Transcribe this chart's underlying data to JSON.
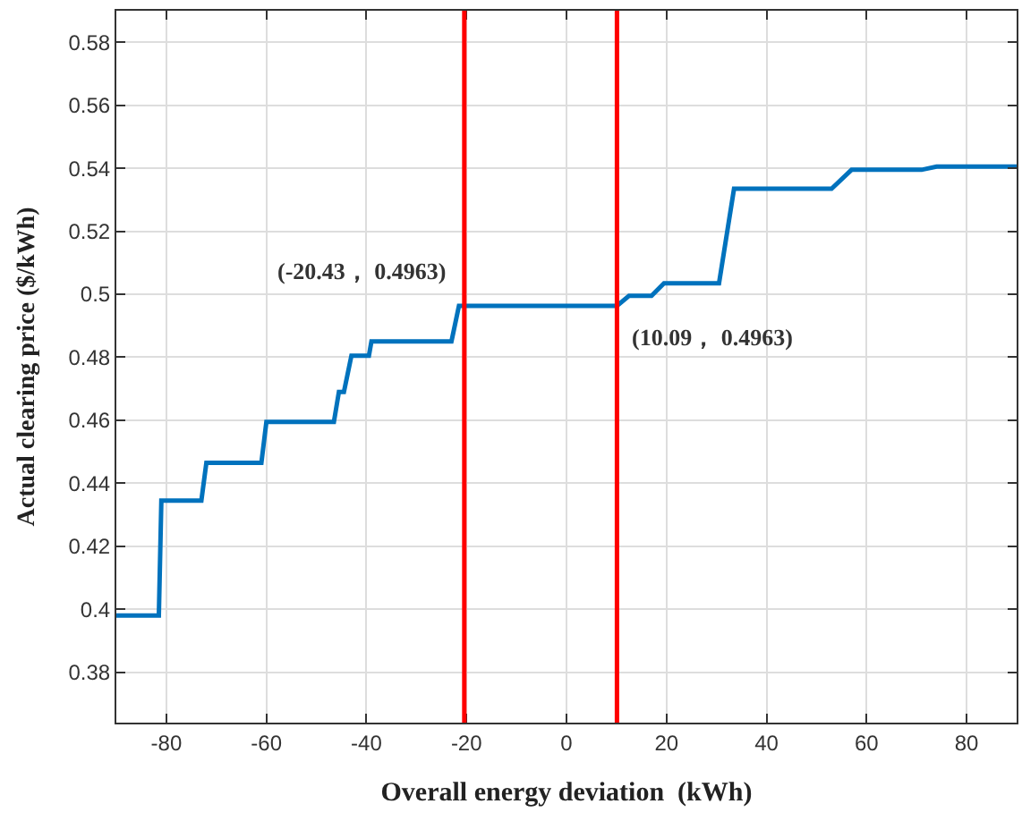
{
  "chart_data": {
    "type": "line",
    "xlabel": "Overall energy deviation  (kWh)",
    "ylabel": "Actual clearing price ($/kWh)",
    "x": [
      -90,
      -81.5,
      -81,
      -73,
      -72,
      -61,
      -60,
      -46.5,
      -45.5,
      -44.5,
      -43,
      -39.5,
      -39,
      -23,
      -21.5,
      -20.43,
      10.09,
      12.5,
      17,
      19.5,
      30.5,
      33.5,
      53,
      57,
      71,
      74,
      90
    ],
    "series": [
      {
        "color": "#0072bd",
        "values": [
          0.398,
          0.398,
          0.4345,
          0.4345,
          0.4465,
          0.4465,
          0.4595,
          0.4595,
          0.469,
          0.469,
          0.4805,
          0.4805,
          0.485,
          0.485,
          0.4963,
          0.4963,
          0.4963,
          0.4995,
          0.4995,
          0.5035,
          0.5035,
          0.5335,
          0.5335,
          0.5395,
          0.5395,
          0.5405,
          0.5405
        ]
      }
    ],
    "xlim": [
      -90,
      90
    ],
    "xticks": [
      -80,
      -60,
      -40,
      -20,
      0,
      20,
      40,
      60,
      80
    ],
    "ylim": [
      0.364,
      0.59
    ],
    "yticks": [
      0.38,
      0.4,
      0.42,
      0.44,
      0.46,
      0.48,
      0.5,
      0.52,
      0.54,
      0.56,
      0.58
    ],
    "ref_lines": [
      {
        "axis": "x",
        "value": -20.43,
        "color": "#ff0000"
      },
      {
        "axis": "x",
        "value": 10.09,
        "color": "#ff0000"
      }
    ],
    "annotations": [
      {
        "text": "(-20.43， 0.4963)",
        "x": -20.43,
        "y": 0.4963
      },
      {
        "text": "(10.09， 0.4963)",
        "x": 10.09,
        "y": 0.4963
      }
    ],
    "grid": true,
    "legend": false,
    "marker": "none",
    "line_style": "solid"
  }
}
